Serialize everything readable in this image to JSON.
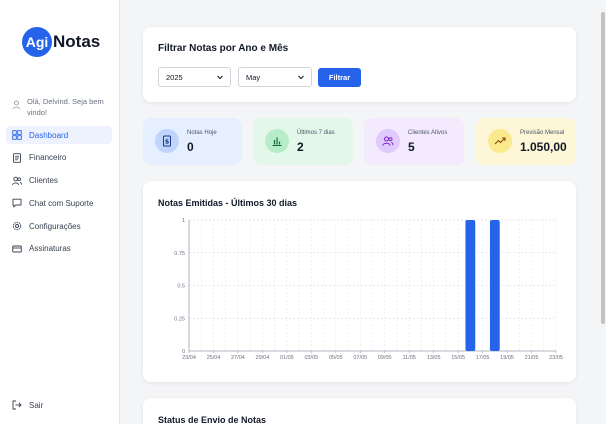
{
  "brand": {
    "badge": "Agi",
    "name": "Notas",
    "color": "#2563eb"
  },
  "user": {
    "greeting": "Olá, Delvind. Seja bem vindo!"
  },
  "nav": [
    {
      "label": "Dashboard",
      "icon": "grid-icon",
      "active": true
    },
    {
      "label": "Financeiro",
      "icon": "receipt-icon"
    },
    {
      "label": "Clientes",
      "icon": "users-icon"
    },
    {
      "label": "Chat com Suporte",
      "icon": "chat-icon"
    },
    {
      "label": "Configurações",
      "icon": "gear-icon"
    },
    {
      "label": "Assinaturas",
      "icon": "card-icon"
    }
  ],
  "logout": {
    "label": "Sair",
    "icon": "logout-icon"
  },
  "filter": {
    "title": "Filtrar Notas por Ano e Mês",
    "year": "2025",
    "month": "May",
    "button": "Filtrar"
  },
  "stats": [
    {
      "label": "Notas Hoje",
      "value": "0",
      "icon": "dollar-doc-icon",
      "bg": "#e6efff",
      "circle": "#bfd5fb",
      "color": "#1e3a8a"
    },
    {
      "label": "Últimos 7 dias",
      "value": "2",
      "icon": "bar-chart-icon",
      "bg": "#e3f8ea",
      "circle": "#b7ecc9",
      "color": "#166534"
    },
    {
      "label": "Clientes Ativos",
      "value": "5",
      "icon": "users-icon",
      "bg": "#f3eafd",
      "circle": "#e0c9fb",
      "color": "#7e22ce"
    },
    {
      "label": "Previsão Mensal",
      "value": "1.050,00",
      "icon": "trend-up-icon",
      "bg": "#fdf7d8",
      "circle": "#fbe98d",
      "color": "#854d0e"
    }
  ],
  "chart_title": "Notas Emitidas - Últimos 30 dias",
  "chart_data": {
    "type": "bar",
    "categories": [
      "23/04",
      "24/04",
      "25/04",
      "26/04",
      "27/04",
      "28/04",
      "29/04",
      "30/04",
      "01/05",
      "02/05",
      "03/05",
      "04/05",
      "05/05",
      "06/05",
      "07/05",
      "08/05",
      "09/05",
      "10/05",
      "11/05",
      "12/05",
      "13/05",
      "14/05",
      "15/05",
      "16/05",
      "17/05",
      "18/05",
      "19/05",
      "20/05",
      "21/05",
      "22/05",
      "23/05"
    ],
    "tick_labels": [
      "23/04",
      "25/04",
      "27/04",
      "29/04",
      "01/05",
      "03/05",
      "05/05",
      "07/05",
      "09/05",
      "11/05",
      "13/05",
      "15/05",
      "17/05",
      "19/05",
      "21/05",
      "23/05"
    ],
    "values": [
      0,
      0,
      0,
      0,
      0,
      0,
      0,
      0,
      0,
      0,
      0,
      0,
      0,
      0,
      0,
      0,
      0,
      0,
      0,
      0,
      0,
      0,
      0,
      1,
      0,
      1,
      0,
      0,
      0,
      0,
      0
    ],
    "ylim": [
      0,
      1
    ],
    "yticks": [
      "0",
      "0.25",
      "0.5",
      "0.75",
      "1"
    ],
    "bar_color": "#2563eb",
    "grid": true
  },
  "status": {
    "title": "Status de Envio de Notas"
  }
}
